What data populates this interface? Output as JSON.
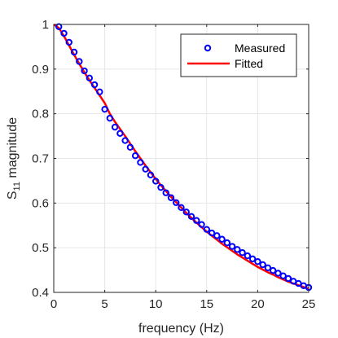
{
  "chart_data": {
    "type": "scatter",
    "xlabel": "frequency (Hz)",
    "ylabel_main": "S",
    "ylabel_subscript": "11",
    "ylabel_rest": " magnitude",
    "xlim": [
      0,
      25
    ],
    "ylim": [
      0.4,
      1
    ],
    "grid": true,
    "legend_position": "top-right",
    "x_ticks": [
      0,
      5,
      10,
      15,
      20,
      25
    ],
    "x_tick_labels": [
      "0",
      "5",
      "10",
      "15",
      "20",
      "25"
    ],
    "y_ticks": [
      0.4,
      0.5,
      0.6,
      0.7,
      0.8,
      0.9,
      1.0
    ],
    "y_tick_labels": [
      "0.4",
      "0.5",
      "0.6",
      "0.7",
      "0.8",
      "0.9",
      "1"
    ],
    "series": [
      {
        "name": "Measured",
        "style": "markers",
        "marker": "circle-open",
        "color": "#0000ff",
        "x": [
          0.5,
          1.0,
          1.5,
          2.0,
          2.5,
          3.0,
          3.5,
          4.0,
          4.5,
          5.0,
          5.5,
          6.0,
          6.5,
          7.0,
          7.5,
          8.0,
          8.5,
          9.0,
          9.5,
          10.0,
          10.5,
          11.0,
          11.5,
          12.0,
          12.5,
          13.0,
          13.5,
          14.0,
          14.5,
          15.0,
          15.5,
          16.0,
          16.5,
          17.0,
          17.5,
          18.0,
          18.5,
          19.0,
          19.5,
          20.0,
          20.5,
          21.0,
          21.5,
          22.0,
          22.5,
          23.0,
          23.5,
          24.0,
          24.5,
          25.0
        ],
        "y": [
          0.995,
          0.98,
          0.96,
          0.938,
          0.917,
          0.896,
          0.88,
          0.865,
          0.849,
          0.81,
          0.79,
          0.77,
          0.756,
          0.74,
          0.725,
          0.706,
          0.691,
          0.676,
          0.663,
          0.649,
          0.635,
          0.623,
          0.612,
          0.601,
          0.59,
          0.58,
          0.57,
          0.561,
          0.552,
          0.541,
          0.533,
          0.527,
          0.519,
          0.511,
          0.503,
          0.496,
          0.489,
          0.482,
          0.475,
          0.469,
          0.462,
          0.455,
          0.449,
          0.443,
          0.437,
          0.431,
          0.425,
          0.42,
          0.415,
          0.411
        ]
      },
      {
        "name": "Fitted",
        "style": "line",
        "color": "#ff0000",
        "x": [
          0,
          0.5,
          1,
          1.5,
          2,
          2.5,
          3,
          3.5,
          4,
          4.5,
          5,
          5.5,
          6,
          6.5,
          7,
          7.5,
          8,
          8.5,
          9,
          9.5,
          10,
          10.5,
          11,
          11.5,
          12,
          12.5,
          13,
          13.5,
          14,
          14.5,
          15,
          15.5,
          16,
          16.5,
          17,
          17.5,
          18,
          18.5,
          19,
          19.5,
          20,
          20.5,
          21,
          21.5,
          22,
          22.5,
          23,
          23.5,
          24,
          24.5,
          25
        ],
        "y": [
          1.0,
          0.992,
          0.974,
          0.953,
          0.932,
          0.912,
          0.893,
          0.875,
          0.858,
          0.841,
          0.824,
          0.8,
          0.782,
          0.766,
          0.75,
          0.733,
          0.716,
          0.7,
          0.684,
          0.669,
          0.654,
          0.64,
          0.627,
          0.614,
          0.602,
          0.59,
          0.578,
          0.567,
          0.556,
          0.546,
          0.536,
          0.527,
          0.518,
          0.509,
          0.501,
          0.493,
          0.485,
          0.478,
          0.471,
          0.464,
          0.457,
          0.451,
          0.445,
          0.44,
          0.434,
          0.429,
          0.424,
          0.42,
          0.416,
          0.412,
          0.409
        ]
      }
    ]
  }
}
